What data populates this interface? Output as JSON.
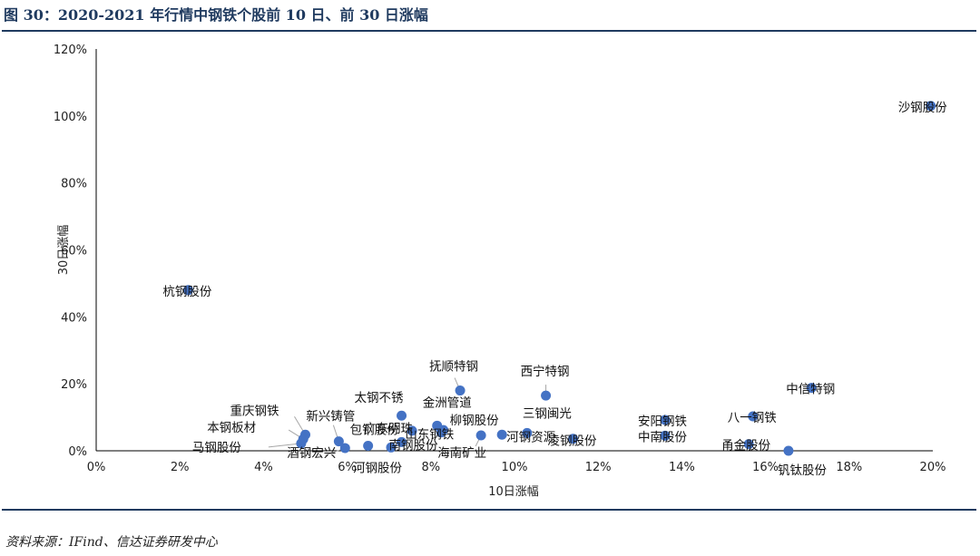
{
  "figure_title": "图 30：2020-2021 年行情中钢铁个股前 10 日、前 30 日涨幅",
  "source": "资料来源：IFind、信达证券研发中心",
  "colors": {
    "point": "#4472c4",
    "axis": "#000000",
    "title": "#1f3a5f",
    "leader": "#a6a6a6"
  },
  "chart_data": {
    "type": "scatter",
    "xlabel": "10日涨幅",
    "ylabel": "30日涨幅",
    "xlim": [
      0,
      20
    ],
    "ylim": [
      0,
      120
    ],
    "x_ticks": [
      "0%",
      "2%",
      "4%",
      "6%",
      "8%",
      "10%",
      "12%",
      "14%",
      "16%",
      "18%",
      "20%"
    ],
    "y_ticks": [
      "0%",
      "20%",
      "40%",
      "60%",
      "80%",
      "100%",
      "120%"
    ],
    "grid": false,
    "legend": "none",
    "points": [
      {
        "name": "沙钢股份",
        "x": 19.95,
        "y": 103.0
      },
      {
        "name": "杭钢股份",
        "x": 2.2,
        "y": 48.0
      },
      {
        "name": "抚顺特钢",
        "x": 8.7,
        "y": 18.0
      },
      {
        "name": "西宁特钢",
        "x": 10.75,
        "y": 16.5
      },
      {
        "name": "中信特钢",
        "x": 17.1,
        "y": 18.8
      },
      {
        "name": "八一钢铁",
        "x": 15.7,
        "y": 10.3
      },
      {
        "name": "安阳钢铁",
        "x": 13.6,
        "y": 9.2
      },
      {
        "name": "中南股份",
        "x": 13.6,
        "y": 4.5
      },
      {
        "name": "甬金股份",
        "x": 15.6,
        "y": 2.0
      },
      {
        "name": "钒钛股份",
        "x": 16.55,
        "y": 0.0
      },
      {
        "name": "太钢不锈",
        "x": 7.3,
        "y": 10.5
      },
      {
        "name": "金洲管道",
        "x": 8.15,
        "y": 7.5
      },
      {
        "name": "广东明珠",
        "x": 7.55,
        "y": 6.0
      },
      {
        "name": "柳钢股份",
        "x": 8.3,
        "y": 6.2
      },
      {
        "name": "山东钢铁",
        "x": 8.25,
        "y": 5.5
      },
      {
        "name": "三钢闽光",
        "x": 10.3,
        "y": 5.3
      },
      {
        "name": "河钢资源",
        "x": 9.7,
        "y": 4.8
      },
      {
        "name": "海南矿业",
        "x": 9.2,
        "y": 4.6
      },
      {
        "name": "凌钢股份",
        "x": 11.4,
        "y": 3.6
      },
      {
        "name": "包钢股份",
        "x": 6.5,
        "y": 1.5
      },
      {
        "name": "南钢股份",
        "x": 7.3,
        "y": 2.6
      },
      {
        "name": "河钢股份",
        "x": 7.05,
        "y": 1.0
      },
      {
        "name": "重庆钢铁",
        "x": 5.0,
        "y": 4.8
      },
      {
        "name": "新兴铸管",
        "x": 5.8,
        "y": 2.8
      },
      {
        "name": "本钢板材",
        "x": 4.95,
        "y": 3.5
      },
      {
        "name": "马钢股份",
        "x": 4.9,
        "y": 2.2
      },
      {
        "name": "酒钢宏兴",
        "x": 5.95,
        "y": 0.8
      }
    ]
  }
}
